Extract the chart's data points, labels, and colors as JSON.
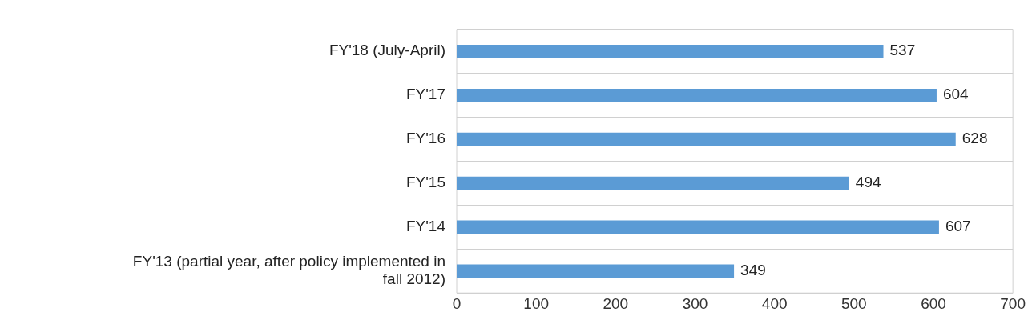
{
  "chart_data": {
    "type": "bar",
    "orientation": "horizontal",
    "categories": [
      "FY'18 (July-April)",
      "FY'17",
      "FY'16",
      "FY'15",
      "FY'14",
      "FY'13 (partial year, after policy implemented in fall 2012)"
    ],
    "values": [
      537,
      604,
      628,
      494,
      607,
      349
    ],
    "color": "#5b9bd5",
    "xlim": [
      0,
      700
    ],
    "xticks": [
      0,
      100,
      200,
      300,
      400,
      500,
      600,
      700
    ],
    "grid": "y",
    "data_labels": true
  }
}
